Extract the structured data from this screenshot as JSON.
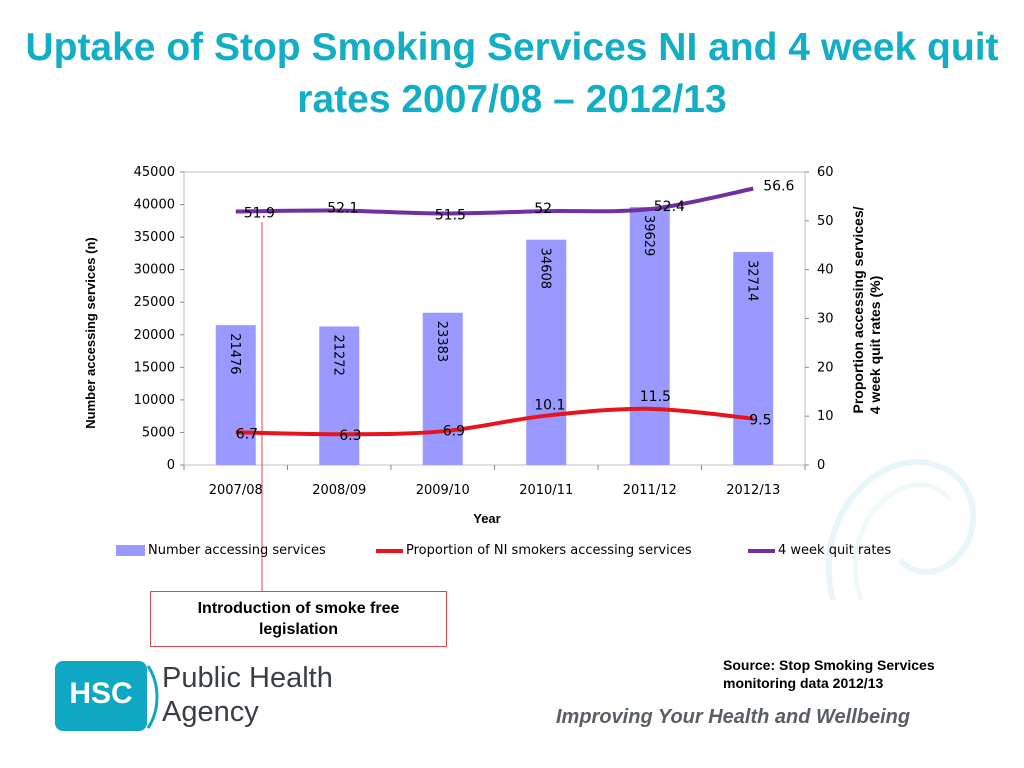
{
  "title": "Uptake of Stop Smoking Services NI and 4 week quit rates 2007/08 – 2012/13",
  "chart_data": {
    "type": "bar",
    "categories": [
      "2007/08",
      "2008/09",
      "2009/10",
      "2010/11",
      "2011/12",
      "2012/13"
    ],
    "xlabel": "Year",
    "ylabel": "Number accessing services (n)",
    "y2label_line1": "Proportion accessing services/",
    "y2label_line2": "4 week quit rates (%)",
    "ylim": [
      0,
      45000
    ],
    "y2lim": [
      0,
      60
    ],
    "yticks": [
      "0",
      "5000",
      "10000",
      "15000",
      "20000",
      "25000",
      "30000",
      "35000",
      "40000",
      "45000"
    ],
    "y2ticks": [
      "0",
      "10",
      "20",
      "30",
      "40",
      "50",
      "60"
    ],
    "grid": false,
    "legend_position": "bottom",
    "series": [
      {
        "name": "Number accessing services",
        "kind": "bar",
        "axis": "left",
        "color": "#9999ff",
        "values": [
          21476,
          21272,
          23383,
          34608,
          39629,
          32714
        ],
        "labels": [
          "21476",
          "21272",
          "23383",
          "34608",
          "39629",
          "32714"
        ]
      },
      {
        "name": "Proportion of NI smokers accessing services",
        "kind": "line",
        "axis": "right",
        "color": "#e8141c",
        "values": [
          6.7,
          6.3,
          6.9,
          10.1,
          11.5,
          9.5
        ],
        "labels": [
          "6.7",
          "6.3",
          "6.9",
          "10.1",
          "11.5",
          "9.5"
        ]
      },
      {
        "name": "4 week quit rates",
        "kind": "line",
        "axis": "right",
        "color": "#7030a0",
        "values": [
          51.9,
          52.1,
          51.5,
          52,
          52.4,
          56.6
        ],
        "labels": [
          "51.9",
          "52.1",
          "51.5",
          "52",
          "52.4",
          "56.6"
        ]
      }
    ]
  },
  "annotation": {
    "text_line1": "Introduction of smoke free",
    "text_line2": "legislation"
  },
  "source": {
    "line1": "Source:  Stop Smoking Services",
    "line2": "monitoring data 2012/13"
  },
  "footer": {
    "logo_text": "HSC",
    "org_line1": "Public Health",
    "org_line2": "Agency",
    "slogan": "Improving Your Health and Wellbeing"
  },
  "colors": {
    "title": "#12aec6",
    "brand": "#10a7c4",
    "callout_border": "#e0474c"
  }
}
